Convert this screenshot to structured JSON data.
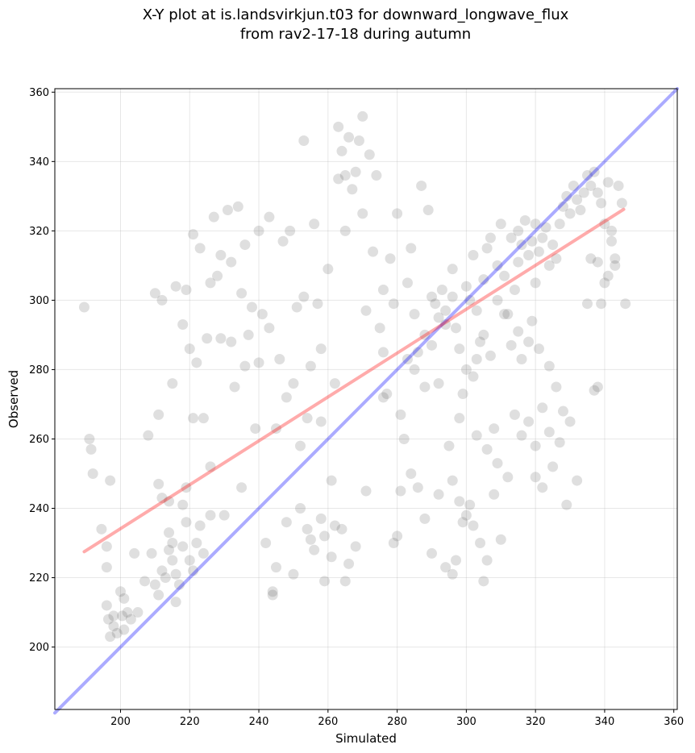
{
  "chart_data": {
    "type": "scatter",
    "title_line1": "X-Y plot at is.landsvirkjun.t03 for downward_longwave_flux",
    "title_line2": "from rav2-17-18 during autumn",
    "xlabel": "Simulated",
    "ylabel": "Observed",
    "xlim": [
      181,
      361
    ],
    "ylim": [
      182,
      361
    ],
    "xticks": [
      "200",
      "220",
      "240",
      "260",
      "280",
      "300",
      "320",
      "340",
      "360"
    ],
    "yticks": [
      "200",
      "220",
      "240",
      "260",
      "280",
      "300",
      "320",
      "340",
      "360"
    ],
    "grid": true,
    "colors": {
      "points": "#4d4d4d",
      "identity_line": "#0000ff",
      "fit_line": "#ff0000"
    },
    "identity_line": {
      "x": [
        181,
        361
      ],
      "y": [
        181,
        361
      ]
    },
    "fit_line": {
      "x": [
        189.5,
        345.5
      ],
      "y": [
        227.5,
        326.2
      ]
    },
    "points": [
      [
        189.5,
        298
      ],
      [
        191,
        260
      ],
      [
        191.5,
        257
      ],
      [
        192,
        250
      ],
      [
        194.5,
        234
      ],
      [
        196,
        229
      ],
      [
        196,
        223
      ],
      [
        197,
        248
      ],
      [
        196,
        212
      ],
      [
        196.5,
        208
      ],
      [
        197,
        203
      ],
      [
        198,
        206
      ],
      [
        199,
        204
      ],
      [
        200,
        216
      ],
      [
        200.5,
        209
      ],
      [
        201,
        214
      ],
      [
        202,
        210
      ],
      [
        201,
        205
      ],
      [
        203,
        208
      ],
      [
        198,
        209
      ],
      [
        204,
        227
      ],
      [
        205,
        210
      ],
      [
        207,
        219
      ],
      [
        208,
        261
      ],
      [
        209,
        227
      ],
      [
        210,
        302
      ],
      [
        211,
        267
      ],
      [
        211,
        247
      ],
      [
        212,
        300
      ],
      [
        210,
        218
      ],
      [
        211,
        215
      ],
      [
        212,
        222
      ],
      [
        213,
        220
      ],
      [
        214,
        228
      ],
      [
        215,
        225
      ],
      [
        216,
        221
      ],
      [
        215,
        230
      ],
      [
        217,
        218
      ],
      [
        214,
        233
      ],
      [
        216,
        213
      ],
      [
        218,
        229
      ],
      [
        219,
        236
      ],
      [
        220,
        225
      ],
      [
        218,
        241
      ],
      [
        219,
        246
      ],
      [
        222,
        230
      ],
      [
        223,
        235
      ],
      [
        221,
        222
      ],
      [
        224,
        227
      ],
      [
        226,
        238
      ],
      [
        212,
        243
      ],
      [
        214,
        242
      ],
      [
        215,
        276
      ],
      [
        216,
        304
      ],
      [
        218,
        293
      ],
      [
        219,
        303
      ],
      [
        220,
        286
      ],
      [
        221,
        266
      ],
      [
        221,
        319
      ],
      [
        222,
        282
      ],
      [
        223,
        315
      ],
      [
        224,
        266
      ],
      [
        225,
        289
      ],
      [
        226,
        252
      ],
      [
        226,
        305
      ],
      [
        227,
        324
      ],
      [
        228,
        307
      ],
      [
        229,
        289
      ],
      [
        229,
        313
      ],
      [
        230,
        238
      ],
      [
        231,
        326
      ],
      [
        232,
        288
      ],
      [
        232,
        311
      ],
      [
        233,
        275
      ],
      [
        234,
        327
      ],
      [
        235,
        302
      ],
      [
        235,
        246
      ],
      [
        236,
        281
      ],
      [
        236,
        316
      ],
      [
        237,
        290
      ],
      [
        238,
        298
      ],
      [
        239,
        263
      ],
      [
        240,
        320
      ],
      [
        240,
        282
      ],
      [
        241,
        296
      ],
      [
        242,
        230
      ],
      [
        243,
        324
      ],
      [
        243,
        292
      ],
      [
        244,
        216
      ],
      [
        245,
        263
      ],
      [
        246,
        283
      ],
      [
        247,
        317
      ],
      [
        248,
        272
      ],
      [
        249,
        320
      ],
      [
        250,
        276
      ],
      [
        251,
        298
      ],
      [
        252,
        258
      ],
      [
        253,
        346
      ],
      [
        253,
        301
      ],
      [
        254,
        266
      ],
      [
        255,
        281
      ],
      [
        256,
        322
      ],
      [
        257,
        299
      ],
      [
        258,
        286
      ],
      [
        258,
        265
      ],
      [
        259,
        232
      ],
      [
        260,
        309
      ],
      [
        261,
        248
      ],
      [
        262,
        276
      ],
      [
        263,
        335
      ],
      [
        263,
        350
      ],
      [
        264,
        343
      ],
      [
        265,
        320
      ],
      [
        265,
        336
      ],
      [
        266,
        347
      ],
      [
        267,
        332
      ],
      [
        268,
        337
      ],
      [
        269,
        346
      ],
      [
        270,
        353
      ],
      [
        270,
        325
      ],
      [
        271,
        297
      ],
      [
        272,
        342
      ],
      [
        273,
        314
      ],
      [
        274,
        336
      ],
      [
        275,
        292
      ],
      [
        276,
        285
      ],
      [
        276,
        303
      ],
      [
        277,
        273
      ],
      [
        278,
        312
      ],
      [
        279,
        299
      ],
      [
        280,
        325
      ],
      [
        281,
        267
      ],
      [
        282,
        260
      ],
      [
        283,
        305
      ],
      [
        284,
        315
      ],
      [
        285,
        296
      ],
      [
        286,
        285
      ],
      [
        287,
        333
      ],
      [
        288,
        275
      ],
      [
        289,
        326
      ],
      [
        290,
        301
      ],
      [
        291,
        299
      ],
      [
        292,
        276
      ],
      [
        293,
        303
      ],
      [
        294,
        297
      ],
      [
        295,
        258
      ],
      [
        296,
        309
      ],
      [
        297,
        292
      ],
      [
        298,
        266
      ],
      [
        299,
        273
      ],
      [
        300,
        304
      ],
      [
        301,
        300
      ],
      [
        302,
        313
      ],
      [
        303,
        297
      ],
      [
        303,
        283
      ],
      [
        304,
        288
      ],
      [
        305,
        306
      ],
      [
        306,
        315
      ],
      [
        307,
        318
      ],
      [
        308,
        263
      ],
      [
        309,
        310
      ],
      [
        310,
        322
      ],
      [
        311,
        307
      ],
      [
        312,
        296
      ],
      [
        313,
        318
      ],
      [
        314,
        303
      ],
      [
        315,
        311
      ],
      [
        315,
        320
      ],
      [
        316,
        316
      ],
      [
        317,
        323
      ],
      [
        318,
        313
      ],
      [
        319,
        317
      ],
      [
        320,
        322
      ],
      [
        320,
        305
      ],
      [
        321,
        314
      ],
      [
        322,
        318
      ],
      [
        323,
        321
      ],
      [
        324,
        310
      ],
      [
        325,
        316
      ],
      [
        326,
        312
      ],
      [
        327,
        322
      ],
      [
        328,
        327
      ],
      [
        329,
        330
      ],
      [
        330,
        325
      ],
      [
        331,
        333
      ],
      [
        332,
        329
      ],
      [
        333,
        326
      ],
      [
        334,
        331
      ],
      [
        335,
        336
      ],
      [
        336,
        333
      ],
      [
        337,
        337
      ],
      [
        338,
        331
      ],
      [
        339,
        328
      ],
      [
        340,
        322
      ],
      [
        341,
        334
      ],
      [
        342,
        317
      ],
      [
        343,
        312
      ],
      [
        344,
        333
      ],
      [
        345,
        328
      ],
      [
        346,
        299
      ],
      [
        305,
        290
      ],
      [
        307,
        284
      ],
      [
        309,
        300
      ],
      [
        311,
        296
      ],
      [
        313,
        287
      ],
      [
        315,
        291
      ],
      [
        316,
        283
      ],
      [
        318,
        288
      ],
      [
        319,
        294
      ],
      [
        321,
        286
      ],
      [
        303,
        261
      ],
      [
        306,
        257
      ],
      [
        309,
        253
      ],
      [
        312,
        249
      ],
      [
        314,
        267
      ],
      [
        316,
        261
      ],
      [
        318,
        265
      ],
      [
        320,
        258
      ],
      [
        322,
        269
      ],
      [
        324,
        262
      ],
      [
        296,
        248
      ],
      [
        298,
        242
      ],
      [
        300,
        238
      ],
      [
        302,
        235
      ],
      [
        304,
        230
      ],
      [
        306,
        225
      ],
      [
        308,
        244
      ],
      [
        310,
        231
      ],
      [
        296,
        221
      ],
      [
        305,
        219
      ],
      [
        281,
        245
      ],
      [
        284,
        250
      ],
      [
        286,
        246
      ],
      [
        288,
        237
      ],
      [
        290,
        227
      ],
      [
        292,
        244
      ],
      [
        294,
        223
      ],
      [
        297,
        225
      ],
      [
        299,
        236
      ],
      [
        301,
        241
      ],
      [
        255,
        231
      ],
      [
        258,
        237
      ],
      [
        261,
        226
      ],
      [
        264,
        234
      ],
      [
        266,
        224
      ],
      [
        268,
        229
      ],
      [
        271,
        245
      ],
      [
        276,
        272
      ],
      [
        279,
        230
      ],
      [
        280,
        232
      ],
      [
        244,
        215
      ],
      [
        245,
        223
      ],
      [
        248,
        236
      ],
      [
        250,
        221
      ],
      [
        252,
        240
      ],
      [
        254,
        234
      ],
      [
        256,
        228
      ],
      [
        259,
        219
      ],
      [
        262,
        235
      ],
      [
        265,
        219
      ],
      [
        324,
        281
      ],
      [
        326,
        275
      ],
      [
        328,
        268
      ],
      [
        330,
        265
      ],
      [
        332,
        248
      ],
      [
        325,
        252
      ],
      [
        327,
        259
      ],
      [
        322,
        246
      ],
      [
        329,
        241
      ],
      [
        320,
        249
      ],
      [
        337,
        274
      ],
      [
        338,
        275
      ],
      [
        340,
        305
      ],
      [
        341,
        307
      ],
      [
        342,
        320
      ],
      [
        343,
        310
      ],
      [
        336,
        312
      ],
      [
        338,
        311
      ],
      [
        339,
        299
      ],
      [
        335,
        299
      ],
      [
        288,
        290
      ],
      [
        290,
        287
      ],
      [
        292,
        295
      ],
      [
        294,
        293
      ],
      [
        296,
        301
      ],
      [
        298,
        286
      ],
      [
        300,
        280
      ],
      [
        302,
        278
      ],
      [
        285,
        280
      ],
      [
        283,
        283
      ]
    ]
  }
}
